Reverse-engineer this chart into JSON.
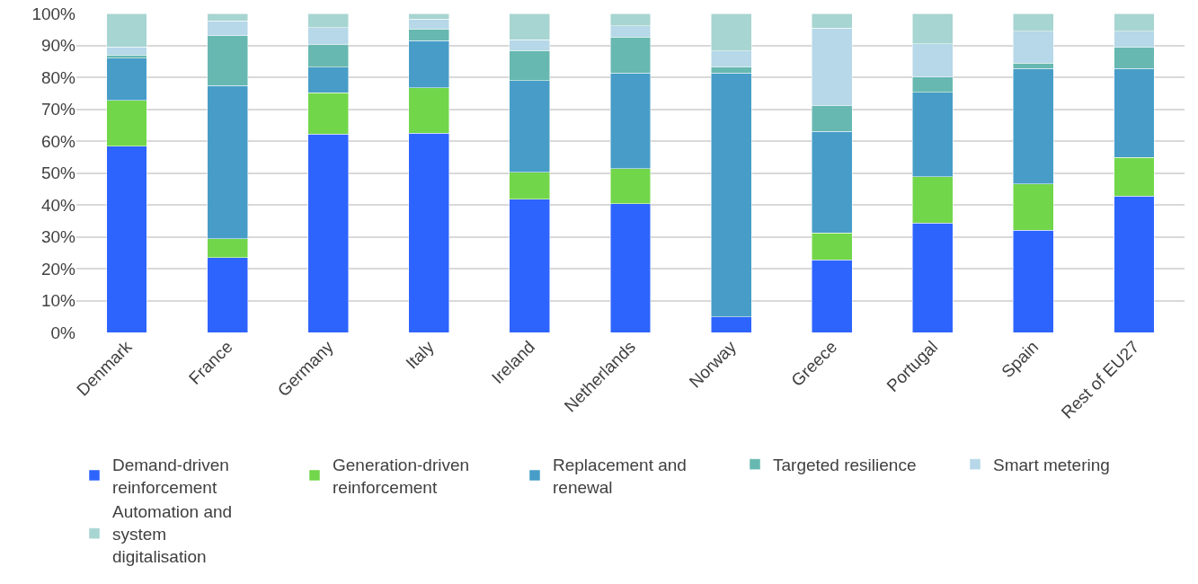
{
  "chart_data": {
    "type": "bar",
    "stacked": true,
    "categories": [
      "Denmark",
      "France",
      "Germany",
      "Italy",
      "Ireland",
      "Netherlands",
      "Norway",
      "Greece",
      "Portugal",
      "Spain",
      "Rest of EU27"
    ],
    "ylim": [
      0,
      100
    ],
    "yticks": [
      {
        "value": 0,
        "label": "0%"
      },
      {
        "value": 10,
        "label": "10%"
      },
      {
        "value": 20,
        "label": "20%"
      },
      {
        "value": 30,
        "label": "30%"
      },
      {
        "value": 40,
        "label": "40%"
      },
      {
        "value": 50,
        "label": "50%"
      },
      {
        "value": 60,
        "label": "60%"
      },
      {
        "value": 70,
        "label": "70%"
      },
      {
        "value": 80,
        "label": "80%"
      },
      {
        "value": 90,
        "label": "90%"
      },
      {
        "value": 100,
        "label": "100%"
      }
    ],
    "grid": "y",
    "legend": "bottom",
    "series": [
      {
        "name": "Demand-driven reinforcement",
        "color": "#2e64fe",
        "values": [
          58.4,
          23.5,
          62.2,
          62.4,
          41.7,
          40.4,
          4.8,
          22.7,
          34.3,
          32.1,
          42.8
        ]
      },
      {
        "name": "Generation-driven reinforcement",
        "color": "#72d64a",
        "values": [
          14.4,
          5.8,
          12.9,
          14.3,
          8.5,
          11.0,
          0,
          8.5,
          14.5,
          14.4,
          12.1
        ]
      },
      {
        "name": "Replacement and renewal",
        "color": "#479dc8",
        "values": [
          13.2,
          48.1,
          8.1,
          14.8,
          28.8,
          29.9,
          76.5,
          31.9,
          26.5,
          36.3,
          27.9
        ]
      },
      {
        "name": "Targeted resilience",
        "color": "#67b8b0",
        "values": [
          1.0,
          15.7,
          7.1,
          3.7,
          9.4,
          11.3,
          1.9,
          8.0,
          4.8,
          1.6,
          6.6
        ]
      },
      {
        "name": "Smart metering",
        "color": "#b6d8e8",
        "values": [
          2.5,
          4.6,
          5.2,
          3.0,
          3.3,
          3.5,
          5.1,
          24.3,
          10.4,
          10.1,
          5.0
        ]
      },
      {
        "name": "Automation and system digitalisation",
        "color": "#a7d5d1",
        "values": [
          10.5,
          2.3,
          4.5,
          1.8,
          8.3,
          3.9,
          11.7,
          4.6,
          9.5,
          5.5,
          5.6
        ]
      }
    ]
  }
}
